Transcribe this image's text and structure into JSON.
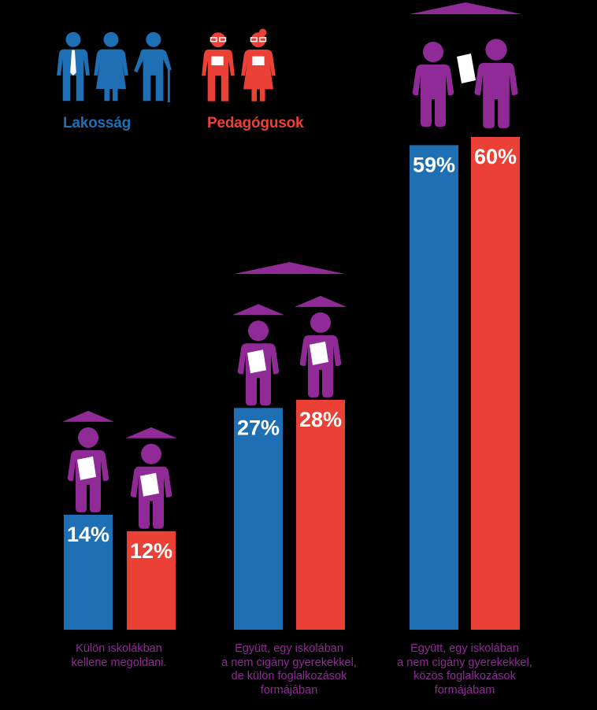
{
  "colors": {
    "background": "#000000",
    "lakossag": "#1f6fb5",
    "pedagogusok": "#ea4035",
    "figures": "#8f2a96",
    "bar_text": "#ffffff"
  },
  "legend": {
    "lakossag": "Lakosság",
    "pedagogusok": "Pedagógusok"
  },
  "chart_data": {
    "type": "bar",
    "categories": [
      "Külön iskolákban\nkellene megoldani.",
      "Együtt, egy iskolában\na nem cigány gyerekekkel,\nde külön foglalkozások\nformájában",
      "Együtt, egy iskolában\na nem cigány gyerekekkel,\nközös foglalkozások\nformájábam"
    ],
    "series": [
      {
        "name": "Lakosság",
        "values": [
          14,
          27,
          59
        ],
        "labels": [
          "14%",
          "27%",
          "59%"
        ]
      },
      {
        "name": "Pedagógusok",
        "values": [
          12,
          28,
          60
        ],
        "labels": [
          "12%",
          "28%",
          "60%"
        ]
      }
    ],
    "ylim": [
      0,
      60
    ],
    "grid": false,
    "legend_position": "top-left",
    "icons": [
      "teacher-figure-icon",
      "people-icon",
      "teachers-icon",
      "handshake-figures-icon"
    ]
  }
}
